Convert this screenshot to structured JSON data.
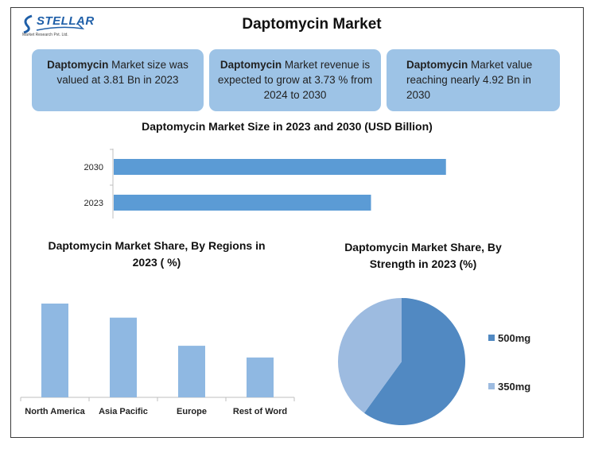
{
  "logo": {
    "word": "STELLAR",
    "sub": "Market Research Pvt. Ltd."
  },
  "title": "Daptomycin Market",
  "cards": [
    {
      "bold": "Daptomycin",
      "text": " Market size was valued at 3.81 Bn in 2023"
    },
    {
      "bold": "Daptomycin",
      "text": " Market revenue is expected to grow at 3.73 % from 2024 to 2030"
    },
    {
      "bold": "Daptomycin",
      "text": " Market value reaching nearly 4.92 Bn in 2030"
    }
  ],
  "colors": {
    "card_bg": "#9dc3e6",
    "bar_dark": "#5b9bd5",
    "bar_light": "#8fb8e2",
    "pie_500": "#5189c2",
    "pie_350": "#9dbbe0"
  },
  "chart_data": [
    {
      "type": "bar",
      "orientation": "horizontal",
      "title": "Daptomycin Market Size in 2023 and 2030 (USD Billion)",
      "categories": [
        "2030",
        "2023"
      ],
      "values": [
        4.92,
        3.81
      ],
      "xlim": [
        0,
        5.3
      ]
    },
    {
      "type": "bar",
      "title": "Daptomycin Market Share, By Regions in 2023 ( %)",
      "categories": [
        "North America",
        "Asia Pacific",
        "Europe",
        "Rest of Word"
      ],
      "values": [
        40,
        34,
        22,
        17
      ],
      "ylim": [
        0,
        40
      ]
    },
    {
      "type": "pie",
      "title": "Daptomycin Market Share, By Strength in 2023 (%)",
      "labels": [
        "500mg",
        "350mg"
      ],
      "values": [
        60,
        40
      ],
      "legend": "right"
    }
  ]
}
